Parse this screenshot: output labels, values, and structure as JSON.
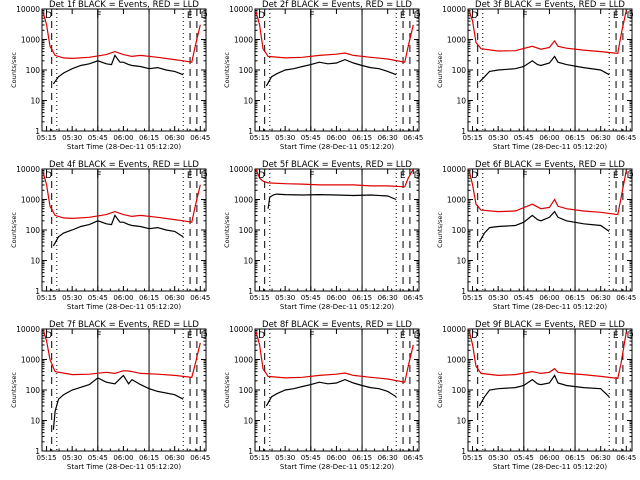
{
  "x_axis": {
    "ticks": [
      "05:15",
      "05:30",
      "05:45",
      "06:00",
      "06:15",
      "06:30",
      "06:45"
    ],
    "label": "Start Time (28-Dec-11 05:12:20)"
  },
  "y_axis": {
    "label": "Counts/sec",
    "ticks": [
      "1",
      "10",
      "100",
      "1000",
      "10000"
    ],
    "scale": "log",
    "ylim": [
      1,
      10000
    ]
  },
  "colors": {
    "events": "#000000",
    "lld": "#dd0000",
    "axes": "#000000"
  },
  "chart_data": [
    {
      "type": "line",
      "title": "Det 1f BLACK = Events, RED = LLD",
      "markers": [
        "D",
        "F",
        "E",
        "D"
      ],
      "series": [
        {
          "name": "Events",
          "color": "black",
          "x": [
            "05:19",
            "05:22",
            "05:25",
            "05:30",
            "05:35",
            "05:40",
            "05:45",
            "05:50",
            "05:53",
            "05:55",
            "05:58",
            "06:00",
            "06:03",
            "06:05",
            "06:10",
            "06:15",
            "06:20",
            "06:25",
            "06:30",
            "06:35"
          ],
          "y": [
            35,
            60,
            80,
            110,
            140,
            160,
            200,
            160,
            150,
            300,
            180,
            180,
            150,
            140,
            130,
            110,
            120,
            100,
            90,
            70
          ]
        },
        {
          "name": "LLD",
          "color": "red",
          "x": [
            "05:13",
            "05:15",
            "05:17",
            "05:20",
            "05:25",
            "05:30",
            "05:40",
            "05:50",
            "05:55",
            "06:00",
            "06:05",
            "06:10",
            "06:20",
            "06:30",
            "06:35",
            "06:40",
            "06:42",
            "06:45"
          ],
          "y": [
            8000,
            3000,
            600,
            300,
            250,
            240,
            260,
            320,
            400,
            320,
            280,
            300,
            260,
            220,
            200,
            180,
            600,
            3000
          ]
        }
      ]
    },
    {
      "type": "line",
      "title": "Det 2f BLACK = Events, RED = LLD",
      "markers": [
        "D",
        "F",
        "E",
        "D"
      ],
      "series": [
        {
          "name": "Events",
          "color": "black",
          "x": [
            "05:19",
            "05:22",
            "05:25",
            "05:30",
            "05:35",
            "05:40",
            "05:45",
            "05:50",
            "05:55",
            "06:00",
            "06:05",
            "06:10",
            "06:15",
            "06:20",
            "06:25",
            "06:30",
            "06:35"
          ],
          "y": [
            30,
            60,
            75,
            100,
            110,
            130,
            150,
            180,
            160,
            170,
            220,
            170,
            140,
            120,
            110,
            90,
            70
          ]
        },
        {
          "name": "LLD",
          "color": "red",
          "x": [
            "05:13",
            "05:15",
            "05:17",
            "05:20",
            "05:30",
            "05:40",
            "05:50",
            "06:00",
            "06:05",
            "06:10",
            "06:20",
            "06:30",
            "06:40",
            "06:42",
            "06:45"
          ],
          "y": [
            8000,
            3000,
            500,
            280,
            250,
            260,
            300,
            330,
            360,
            300,
            260,
            230,
            180,
            600,
            3000
          ]
        }
      ]
    },
    {
      "type": "line",
      "title": "Det 3f BLACK = Events, RED = LLD",
      "markers": [
        "D",
        "F",
        "E",
        "D"
      ],
      "series": [
        {
          "name": "Events",
          "color": "black",
          "x": [
            "05:19",
            "05:22",
            "05:25",
            "05:30",
            "05:40",
            "05:45",
            "05:50",
            "05:53",
            "05:55",
            "06:00",
            "06:03",
            "06:05",
            "06:10",
            "06:20",
            "06:30",
            "06:35"
          ],
          "y": [
            40,
            60,
            90,
            100,
            110,
            130,
            200,
            150,
            140,
            170,
            280,
            180,
            150,
            120,
            100,
            70
          ]
        },
        {
          "name": "LLD",
          "color": "red",
          "x": [
            "05:13",
            "05:15",
            "05:17",
            "05:20",
            "05:30",
            "05:40",
            "05:50",
            "05:55",
            "06:00",
            "06:03",
            "06:05",
            "06:10",
            "06:20",
            "06:30",
            "06:40",
            "06:42",
            "06:45"
          ],
          "y": [
            9000,
            4000,
            800,
            500,
            420,
            430,
            600,
            480,
            550,
            900,
            600,
            520,
            450,
            400,
            350,
            1500,
            9000
          ]
        }
      ]
    },
    {
      "type": "line",
      "title": "Det 4f BLACK = Events, RED = LLD",
      "markers": [
        "D",
        "F",
        "E",
        "D"
      ],
      "series": [
        {
          "name": "Events",
          "color": "black",
          "x": [
            "05:19",
            "05:22",
            "05:25",
            "05:30",
            "05:35",
            "05:40",
            "05:45",
            "05:50",
            "05:53",
            "05:55",
            "05:58",
            "06:00",
            "06:03",
            "06:05",
            "06:10",
            "06:15",
            "06:20",
            "06:25",
            "06:30",
            "06:35"
          ],
          "y": [
            30,
            60,
            80,
            100,
            130,
            150,
            200,
            160,
            150,
            300,
            180,
            180,
            150,
            140,
            130,
            110,
            120,
            100,
            90,
            60
          ]
        },
        {
          "name": "LLD",
          "color": "red",
          "x": [
            "05:13",
            "05:15",
            "05:17",
            "05:20",
            "05:25",
            "05:30",
            "05:40",
            "05:50",
            "05:55",
            "06:00",
            "06:05",
            "06:10",
            "06:20",
            "06:30",
            "06:35",
            "06:40",
            "06:42",
            "06:45"
          ],
          "y": [
            8000,
            3000,
            600,
            300,
            250,
            240,
            260,
            320,
            400,
            320,
            280,
            300,
            260,
            220,
            200,
            180,
            600,
            3000
          ]
        }
      ]
    },
    {
      "type": "line",
      "title": "Det 5f BLACK = Events, RED = LLD",
      "markers": [
        "D",
        "F",
        "E",
        "D"
      ],
      "series": [
        {
          "name": "Events",
          "color": "black",
          "x": [
            "05:20",
            "05:21",
            "05:23",
            "05:25",
            "05:30",
            "05:40",
            "05:50",
            "06:00",
            "06:10",
            "06:20",
            "06:30",
            "06:35"
          ],
          "y": [
            500,
            1200,
            1400,
            1500,
            1450,
            1400,
            1450,
            1400,
            1350,
            1400,
            1300,
            1000
          ]
        },
        {
          "name": "LLD",
          "color": "red",
          "x": [
            "05:13",
            "05:15",
            "05:17",
            "05:20",
            "05:30",
            "05:40",
            "05:50",
            "06:00",
            "06:10",
            "06:20",
            "06:30",
            "06:40",
            "06:42",
            "06:45"
          ],
          "y": [
            10000,
            5000,
            4000,
            3500,
            3300,
            3200,
            3000,
            3000,
            3000,
            2800,
            2800,
            2600,
            5000,
            10000
          ]
        }
      ]
    },
    {
      "type": "line",
      "title": "Det 6f BLACK = Events, RED = LLD",
      "markers": [
        "D",
        "F",
        "E",
        "D"
      ],
      "series": [
        {
          "name": "Events",
          "color": "black",
          "x": [
            "05:19",
            "05:22",
            "05:25",
            "05:30",
            "05:40",
            "05:45",
            "05:50",
            "05:53",
            "05:55",
            "06:00",
            "06:03",
            "06:05",
            "06:10",
            "06:20",
            "06:30",
            "06:35"
          ],
          "y": [
            40,
            80,
            120,
            130,
            140,
            180,
            300,
            220,
            200,
            260,
            400,
            260,
            200,
            160,
            140,
            90
          ]
        },
        {
          "name": "LLD",
          "color": "red",
          "x": [
            "05:13",
            "05:15",
            "05:17",
            "05:20",
            "05:30",
            "05:40",
            "05:50",
            "05:55",
            "06:00",
            "06:03",
            "06:05",
            "06:10",
            "06:20",
            "06:30",
            "06:40",
            "06:42",
            "06:45"
          ],
          "y": [
            9000,
            3000,
            700,
            450,
            400,
            420,
            700,
            500,
            550,
            1000,
            600,
            500,
            420,
            380,
            320,
            1200,
            9000
          ]
        }
      ]
    },
    {
      "type": "line",
      "title": "Det 7f BLACK = Events, RED = LLD",
      "markers": [
        "D",
        "F",
        "E",
        "D"
      ],
      "series": [
        {
          "name": "Events",
          "color": "black",
          "x": [
            "05:19",
            "05:20",
            "05:22",
            "05:25",
            "05:30",
            "05:40",
            "05:45",
            "05:50",
            "05:55",
            "06:00",
            "06:03",
            "06:05",
            "06:10",
            "06:15",
            "06:20",
            "06:30",
            "06:35"
          ],
          "y": [
            5,
            20,
            50,
            70,
            100,
            150,
            250,
            180,
            160,
            300,
            160,
            220,
            150,
            110,
            90,
            70,
            50
          ]
        },
        {
          "name": "LLD",
          "color": "red",
          "x": [
            "05:13",
            "05:15",
            "05:17",
            "05:20",
            "05:30",
            "05:40",
            "05:50",
            "05:55",
            "06:00",
            "06:03",
            "06:05",
            "06:10",
            "06:20",
            "06:30",
            "06:40",
            "06:42",
            "06:45"
          ],
          "y": [
            10000,
            4000,
            1000,
            400,
            320,
            330,
            380,
            350,
            430,
            420,
            400,
            350,
            330,
            300,
            260,
            700,
            3500
          ]
        }
      ]
    },
    {
      "type": "line",
      "title": "Det 8f BLACK = Events, RED = LLD",
      "markers": [
        "D",
        "F",
        "E",
        "D"
      ],
      "series": [
        {
          "name": "Events",
          "color": "black",
          "x": [
            "05:19",
            "05:22",
            "05:25",
            "05:30",
            "05:35",
            "05:40",
            "05:45",
            "05:50",
            "05:55",
            "06:00",
            "06:05",
            "06:10",
            "06:15",
            "06:20",
            "06:25",
            "06:30",
            "06:35"
          ],
          "y": [
            30,
            60,
            75,
            100,
            110,
            130,
            150,
            180,
            160,
            170,
            220,
            170,
            140,
            120,
            110,
            90,
            60
          ]
        },
        {
          "name": "LLD",
          "color": "red",
          "x": [
            "05:13",
            "05:15",
            "05:17",
            "05:20",
            "05:30",
            "05:40",
            "05:50",
            "06:00",
            "06:05",
            "06:10",
            "06:20",
            "06:30",
            "06:40",
            "06:42",
            "06:45"
          ],
          "y": [
            8000,
            3000,
            500,
            280,
            250,
            260,
            300,
            330,
            360,
            300,
            260,
            230,
            180,
            600,
            3000
          ]
        }
      ]
    },
    {
      "type": "line",
      "title": "Det 9f BLACK = Events, RED = LLD",
      "markers": [
        "D",
        "F",
        "E",
        "D"
      ],
      "series": [
        {
          "name": "Events",
          "color": "black",
          "x": [
            "05:19",
            "05:22",
            "05:25",
            "05:30",
            "05:40",
            "05:45",
            "05:50",
            "05:53",
            "05:55",
            "06:00",
            "06:03",
            "06:05",
            "06:10",
            "06:20",
            "06:30",
            "06:35"
          ],
          "y": [
            30,
            60,
            100,
            110,
            120,
            140,
            220,
            160,
            150,
            170,
            300,
            170,
            140,
            120,
            110,
            60
          ]
        },
        {
          "name": "LLD",
          "color": "red",
          "x": [
            "05:13",
            "05:15",
            "05:17",
            "05:20",
            "05:30",
            "05:40",
            "05:50",
            "05:55",
            "06:00",
            "06:03",
            "06:05",
            "06:10",
            "06:20",
            "06:30",
            "06:40",
            "06:42",
            "06:45"
          ],
          "y": [
            9000,
            3000,
            600,
            350,
            300,
            320,
            400,
            350,
            380,
            500,
            380,
            350,
            320,
            280,
            240,
            800,
            8000
          ]
        }
      ]
    }
  ]
}
